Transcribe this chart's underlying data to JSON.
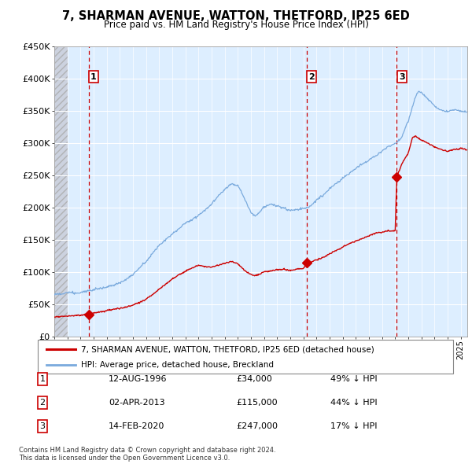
{
  "title": "7, SHARMAN AVENUE, WATTON, THETFORD, IP25 6ED",
  "subtitle": "Price paid vs. HM Land Registry's House Price Index (HPI)",
  "ylim": [
    0,
    450000
  ],
  "yticks": [
    0,
    50000,
    100000,
    150000,
    200000,
    250000,
    300000,
    350000,
    400000,
    450000
  ],
  "ytick_labels": [
    "£0",
    "£50K",
    "£100K",
    "£150K",
    "£200K",
    "£250K",
    "£300K",
    "£350K",
    "£400K",
    "£450K"
  ],
  "sale_dates": [
    1996.617,
    2013.253,
    2020.12
  ],
  "sale_prices": [
    34000,
    115000,
    247000
  ],
  "sale_labels": [
    "1",
    "2",
    "3"
  ],
  "sale_pct": [
    "49% ↓ HPI",
    "44% ↓ HPI",
    "17% ↓ HPI"
  ],
  "sale_date_strs": [
    "12-AUG-1996",
    "02-APR-2013",
    "14-FEB-2020"
  ],
  "sale_price_strs": [
    "£34,000",
    "£115,000",
    "£247,000"
  ],
  "hpi_color": "#7aaadd",
  "sale_color": "#cc0000",
  "vline_color": "#cc0000",
  "chart_bg": "#ddeeff",
  "hatch_bg": "#c8ccd8",
  "legend_label_sale": "7, SHARMAN AVENUE, WATTON, THETFORD, IP25 6ED (detached house)",
  "legend_label_hpi": "HPI: Average price, detached house, Breckland",
  "footnote": "Contains HM Land Registry data © Crown copyright and database right 2024.\nThis data is licensed under the Open Government Licence v3.0.",
  "xmin": 1994.0,
  "xmax": 2025.5
}
